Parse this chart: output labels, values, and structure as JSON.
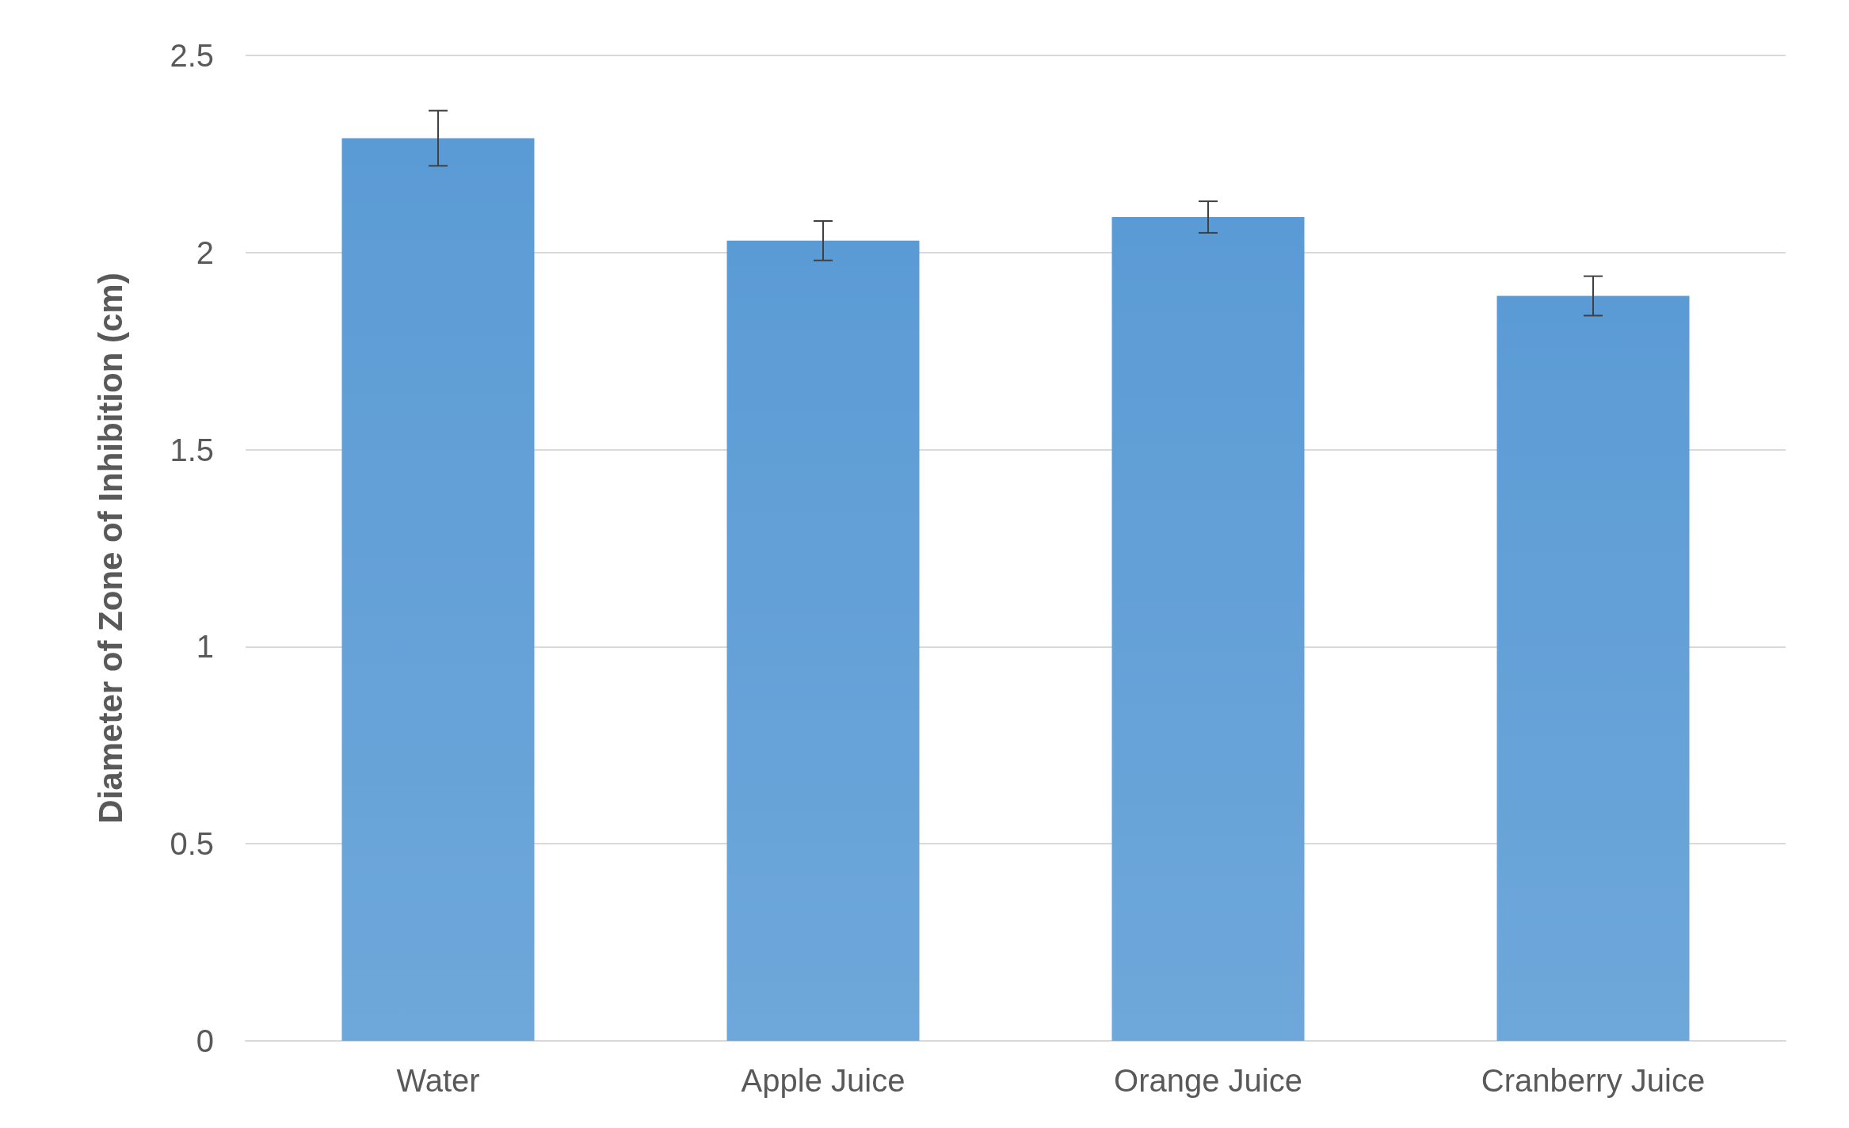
{
  "chart_data": {
    "type": "bar",
    "ylabel": "Diameter of Zone of Inhibition (cm)",
    "categories": [
      "Water",
      "Apple Juice",
      "Orange Juice",
      "Cranberry Juice"
    ],
    "values": [
      2.29,
      2.03,
      2.09,
      1.89
    ],
    "errors": [
      0.07,
      0.05,
      0.04,
      0.05
    ],
    "color": "#5b9bd5",
    "ylim": [
      0,
      2.5
    ],
    "yticks": [
      0,
      0.5,
      1,
      1.5,
      2,
      2.5
    ],
    "grid": "y"
  }
}
